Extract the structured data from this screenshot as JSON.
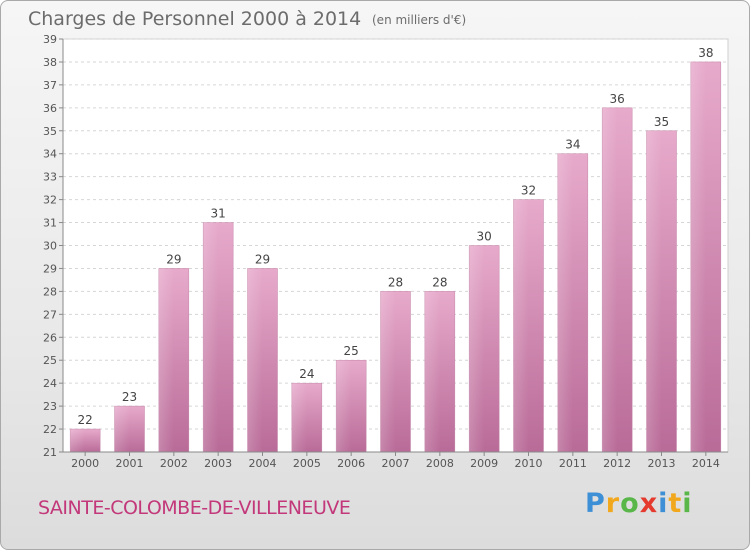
{
  "chart_data": {
    "type": "bar",
    "title": "Charges de Personnel 2000 à 2014",
    "subtitle": "(en milliers d'€)",
    "categories": [
      "2000",
      "2001",
      "2002",
      "2003",
      "2004",
      "2005",
      "2006",
      "2007",
      "2008",
      "2009",
      "2010",
      "2011",
      "2012",
      "2013",
      "2014"
    ],
    "values": [
      22,
      23,
      29,
      31,
      29,
      24,
      25,
      28,
      28,
      30,
      32,
      34,
      36,
      35,
      38
    ],
    "ylim": [
      21,
      39
    ],
    "yticks": [
      21,
      22,
      23,
      24,
      25,
      26,
      27,
      28,
      29,
      30,
      31,
      32,
      33,
      34,
      35,
      36,
      37,
      38,
      39
    ],
    "grid": true,
    "bar_color": "#d98db3"
  },
  "footer": {
    "place": "SAINTE-COLOMBE-DE-VILLENEUVE",
    "logo_letters": [
      "P",
      "r",
      "o",
      "x",
      "i",
      "t",
      "i"
    ],
    "logo_colors": [
      "#3d8fd6",
      "#f2a81d",
      "#58b748",
      "#e53a2e",
      "#3d8fd6",
      "#f2a81d",
      "#58b748"
    ]
  }
}
